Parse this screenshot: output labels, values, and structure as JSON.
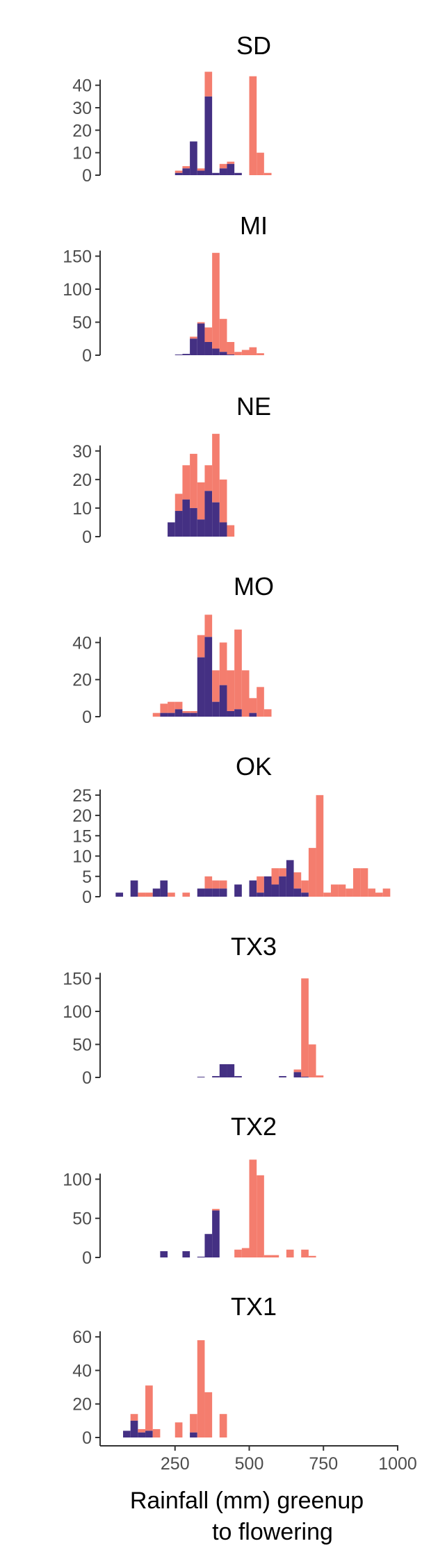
{
  "chart_data": {
    "type": "bar",
    "subtype": "stacked-histogram, faceted",
    "xlabel_line1": "Rainfall (mm) greenup",
    "xlabel_line2": "to flowering",
    "xlim": [
      0,
      1000
    ],
    "xticks": [
      250,
      500,
      750,
      1000
    ],
    "bin_width_mm": 25,
    "series_colors": [
      "#443083",
      "#F47D6E"
    ],
    "grid": false,
    "legend": "none",
    "panels": [
      {
        "title": "SD",
        "yticks": [
          0,
          10,
          20,
          30,
          40
        ],
        "ylim": [
          0,
          47
        ],
        "bars": [
          {
            "x": 250,
            "s1": 1,
            "s2": 2
          },
          {
            "x": 275,
            "s1": 3,
            "s2": 4
          },
          {
            "x": 300,
            "s1": 15,
            "s2": 15
          },
          {
            "x": 325,
            "s1": 2,
            "s2": 3
          },
          {
            "x": 350,
            "s1": 35,
            "s2": 46
          },
          {
            "x": 375,
            "s1": 1,
            "s2": 1
          },
          {
            "x": 400,
            "s1": 3,
            "s2": 5
          },
          {
            "x": 425,
            "s1": 5,
            "s2": 6
          },
          {
            "x": 450,
            "s1": 1,
            "s2": 1
          },
          {
            "x": 500,
            "s1": 0,
            "s2": 44
          },
          {
            "x": 525,
            "s1": 0,
            "s2": 10
          },
          {
            "x": 550,
            "s1": 0,
            "s2": 1
          }
        ]
      },
      {
        "title": "MI",
        "yticks": [
          0,
          50,
          100,
          150
        ],
        "ylim": [
          0,
          160
        ],
        "bars": [
          {
            "x": 250,
            "s1": 1,
            "s2": 1
          },
          {
            "x": 275,
            "s1": 2,
            "s2": 2
          },
          {
            "x": 300,
            "s1": 25,
            "s2": 28
          },
          {
            "x": 325,
            "s1": 48,
            "s2": 50
          },
          {
            "x": 350,
            "s1": 20,
            "s2": 42
          },
          {
            "x": 375,
            "s1": 10,
            "s2": 155
          },
          {
            "x": 400,
            "s1": 5,
            "s2": 55
          },
          {
            "x": 425,
            "s1": 1,
            "s2": 20
          },
          {
            "x": 450,
            "s1": 0,
            "s2": 5
          },
          {
            "x": 475,
            "s1": 0,
            "s2": 8
          },
          {
            "x": 500,
            "s1": 0,
            "s2": 12
          },
          {
            "x": 525,
            "s1": 0,
            "s2": 3
          }
        ]
      },
      {
        "title": "NE",
        "yticks": [
          0,
          10,
          20,
          30
        ],
        "ylim": [
          0,
          37
        ],
        "bars": [
          {
            "x": 225,
            "s1": 5,
            "s2": 5
          },
          {
            "x": 250,
            "s1": 9,
            "s2": 15
          },
          {
            "x": 275,
            "s1": 13,
            "s2": 25
          },
          {
            "x": 300,
            "s1": 10,
            "s2": 29
          },
          {
            "x": 325,
            "s1": 6,
            "s2": 19
          },
          {
            "x": 350,
            "s1": 16,
            "s2": 25
          },
          {
            "x": 375,
            "s1": 12,
            "s2": 36
          },
          {
            "x": 400,
            "s1": 5,
            "s2": 20
          },
          {
            "x": 425,
            "s1": 0,
            "s2": 4
          }
        ]
      },
      {
        "title": "MO",
        "yticks": [
          0,
          20,
          40
        ],
        "ylim": [
          0,
          57
        ],
        "bars": [
          {
            "x": 175,
            "s1": 0,
            "s2": 2
          },
          {
            "x": 200,
            "s1": 2,
            "s2": 7
          },
          {
            "x": 225,
            "s1": 2,
            "s2": 8
          },
          {
            "x": 250,
            "s1": 4,
            "s2": 8
          },
          {
            "x": 275,
            "s1": 2,
            "s2": 3
          },
          {
            "x": 300,
            "s1": 2,
            "s2": 3
          },
          {
            "x": 325,
            "s1": 32,
            "s2": 44
          },
          {
            "x": 350,
            "s1": 43,
            "s2": 55
          },
          {
            "x": 375,
            "s1": 8,
            "s2": 25
          },
          {
            "x": 400,
            "s1": 17,
            "s2": 40
          },
          {
            "x": 425,
            "s1": 3,
            "s2": 25
          },
          {
            "x": 450,
            "s1": 4,
            "s2": 47
          },
          {
            "x": 475,
            "s1": 0,
            "s2": 25
          },
          {
            "x": 500,
            "s1": 2,
            "s2": 10
          },
          {
            "x": 525,
            "s1": 0,
            "s2": 16
          },
          {
            "x": 550,
            "s1": 0,
            "s2": 4
          }
        ]
      },
      {
        "title": "OK",
        "yticks": [
          0,
          5,
          10,
          15,
          20,
          25
        ],
        "ylim": [
          0,
          26
        ],
        "bars": [
          {
            "x": 50,
            "s1": 1,
            "s2": 1
          },
          {
            "x": 100,
            "s1": 4,
            "s2": 4
          },
          {
            "x": 125,
            "s1": 0,
            "s2": 1
          },
          {
            "x": 150,
            "s1": 0,
            "s2": 1
          },
          {
            "x": 175,
            "s1": 2,
            "s2": 2
          },
          {
            "x": 200,
            "s1": 4,
            "s2": 4
          },
          {
            "x": 225,
            "s1": 0,
            "s2": 1
          },
          {
            "x": 275,
            "s1": 0,
            "s2": 1
          },
          {
            "x": 325,
            "s1": 2,
            "s2": 2
          },
          {
            "x": 350,
            "s1": 2,
            "s2": 5
          },
          {
            "x": 375,
            "s1": 2,
            "s2": 4
          },
          {
            "x": 400,
            "s1": 2,
            "s2": 4
          },
          {
            "x": 450,
            "s1": 3,
            "s2": 3
          },
          {
            "x": 500,
            "s1": 4,
            "s2": 4
          },
          {
            "x": 525,
            "s1": 1,
            "s2": 5
          },
          {
            "x": 550,
            "s1": 5,
            "s2": 5
          },
          {
            "x": 575,
            "s1": 3,
            "s2": 7
          },
          {
            "x": 600,
            "s1": 5,
            "s2": 7
          },
          {
            "x": 625,
            "s1": 9,
            "s2": 9
          },
          {
            "x": 650,
            "s1": 2,
            "s2": 6
          },
          {
            "x": 675,
            "s1": 1,
            "s2": 4
          },
          {
            "x": 700,
            "s1": 0,
            "s2": 12
          },
          {
            "x": 725,
            "s1": 0,
            "s2": 25
          },
          {
            "x": 750,
            "s1": 0,
            "s2": 1
          },
          {
            "x": 775,
            "s1": 0,
            "s2": 3
          },
          {
            "x": 800,
            "s1": 0,
            "s2": 3
          },
          {
            "x": 825,
            "s1": 0,
            "s2": 2
          },
          {
            "x": 850,
            "s1": 0,
            "s2": 7
          },
          {
            "x": 875,
            "s1": 0,
            "s2": 7
          },
          {
            "x": 900,
            "s1": 0,
            "s2": 2
          },
          {
            "x": 925,
            "s1": 0,
            "s2": 1
          },
          {
            "x": 950,
            "s1": 0,
            "s2": 2
          }
        ]
      },
      {
        "title": "TX3",
        "yticks": [
          0,
          50,
          100,
          150
        ],
        "ylim": [
          0,
          160
        ],
        "bars": [
          {
            "x": 325,
            "s1": 1,
            "s2": 1
          },
          {
            "x": 375,
            "s1": 2,
            "s2": 2
          },
          {
            "x": 400,
            "s1": 20,
            "s2": 20
          },
          {
            "x": 425,
            "s1": 20,
            "s2": 20
          },
          {
            "x": 450,
            "s1": 2,
            "s2": 2
          },
          {
            "x": 600,
            "s1": 2,
            "s2": 2
          },
          {
            "x": 650,
            "s1": 8,
            "s2": 12
          },
          {
            "x": 675,
            "s1": 1,
            "s2": 150
          },
          {
            "x": 700,
            "s1": 0,
            "s2": 50
          },
          {
            "x": 725,
            "s1": 0,
            "s2": 3
          }
        ]
      },
      {
        "title": "TX2",
        "yticks": [
          0,
          50,
          100
        ],
        "ylim": [
          0,
          135
        ],
        "bars": [
          {
            "x": 200,
            "s1": 8,
            "s2": 8
          },
          {
            "x": 275,
            "s1": 8,
            "s2": 8
          },
          {
            "x": 325,
            "s1": 1,
            "s2": 1
          },
          {
            "x": 350,
            "s1": 30,
            "s2": 30
          },
          {
            "x": 375,
            "s1": 60,
            "s2": 62
          },
          {
            "x": 450,
            "s1": 0,
            "s2": 10
          },
          {
            "x": 475,
            "s1": 0,
            "s2": 12
          },
          {
            "x": 500,
            "s1": 0,
            "s2": 125
          },
          {
            "x": 525,
            "s1": 0,
            "s2": 105
          },
          {
            "x": 550,
            "s1": 0,
            "s2": 3
          },
          {
            "x": 575,
            "s1": 0,
            "s2": 3
          },
          {
            "x": 625,
            "s1": 0,
            "s2": 10
          },
          {
            "x": 675,
            "s1": 0,
            "s2": 10
          },
          {
            "x": 700,
            "s1": 0,
            "s2": 2
          }
        ]
      },
      {
        "title": "TX1",
        "yticks": [
          0,
          20,
          40,
          60
        ],
        "ylim": [
          0,
          63
        ],
        "bars": [
          {
            "x": 75,
            "s1": 4,
            "s2": 4
          },
          {
            "x": 100,
            "s1": 10,
            "s2": 14
          },
          {
            "x": 125,
            "s1": 3,
            "s2": 5
          },
          {
            "x": 150,
            "s1": 4,
            "s2": 31
          },
          {
            "x": 175,
            "s1": 0,
            "s2": 5
          },
          {
            "x": 250,
            "s1": 0,
            "s2": 9
          },
          {
            "x": 300,
            "s1": 3,
            "s2": 14
          },
          {
            "x": 325,
            "s1": 0,
            "s2": 58
          },
          {
            "x": 350,
            "s1": 0,
            "s2": 27
          },
          {
            "x": 400,
            "s1": 0,
            "s2": 14
          }
        ]
      }
    ]
  }
}
